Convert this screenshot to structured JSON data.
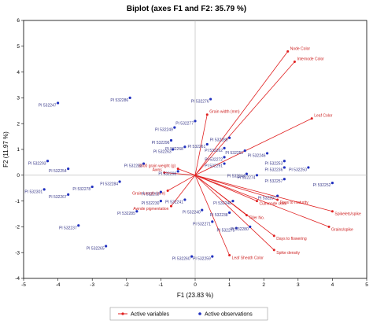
{
  "chart_data": {
    "type": "scatter",
    "title": "Biplot (axes F1 and F2: 35.79 %)",
    "xlabel": "F1 (23.83 %)",
    "ylabel": "F2 (11.97 %)",
    "xlim": [
      -5,
      5
    ],
    "ylim": [
      -4,
      6
    ],
    "xticks": [
      -5,
      -4,
      -3,
      -2,
      -1,
      0,
      1,
      2,
      3,
      4,
      5
    ],
    "yticks": [
      -4,
      -3,
      -2,
      -1,
      0,
      1,
      2,
      3,
      4,
      5,
      6
    ],
    "grid": false,
    "legend": "bottom",
    "colors": {
      "variables": "#e01f1f",
      "observations": "#1f2fbf",
      "zero_lines": "#b3b3b3"
    },
    "series": [
      {
        "name": "Active variables",
        "kind": "arrows",
        "points": [
          {
            "label": "Node Color",
            "x": 2.7,
            "y": 4.8
          },
          {
            "label": "Internode Color",
            "x": 2.9,
            "y": 4.4
          },
          {
            "label": "Leaf Color",
            "x": 3.4,
            "y": 2.2
          },
          {
            "label": "Grain width (mm)",
            "x": 0.35,
            "y": 2.35
          },
          {
            "label": "3000 grain weight (g)",
            "x": -0.5,
            "y": 0.25
          },
          {
            "label": "Awns",
            "x": -0.9,
            "y": 0.1
          },
          {
            "label": "Grain Length (mm)",
            "x": -0.8,
            "y": -0.6
          },
          {
            "label": "Awnde pigmentation",
            "x": -0.7,
            "y": -1.2
          },
          {
            "label": "Culmnode color",
            "x": 1.8,
            "y": -1.0
          },
          {
            "label": "Days to maturity",
            "x": 2.4,
            "y": -0.95
          },
          {
            "label": "Spikelets/spike",
            "x": 4.0,
            "y": -1.4
          },
          {
            "label": "Grains/spike",
            "x": 3.9,
            "y": -2.0
          },
          {
            "label": "Tiller No.",
            "x": 1.5,
            "y": -1.55
          },
          {
            "label": "Days to flowering",
            "x": 2.3,
            "y": -2.35
          },
          {
            "label": "Spike density",
            "x": 2.3,
            "y": -2.9
          },
          {
            "label": "Leaf Sheath Color",
            "x": 1.0,
            "y": -3.1
          }
        ]
      },
      {
        "name": "Active observations",
        "kind": "points",
        "points": [
          {
            "label": "PI 532286",
            "x": -1.9,
            "y": 3.0
          },
          {
            "label": "PI 532247",
            "x": -4.0,
            "y": 2.8
          },
          {
            "label": "PI 532276",
            "x": 0.45,
            "y": 2.95
          },
          {
            "label": "PI 532277",
            "x": 0.0,
            "y": 2.1
          },
          {
            "label": "PI 532249",
            "x": -0.6,
            "y": 1.85
          },
          {
            "label": "PI 532296",
            "x": -0.7,
            "y": 1.35
          },
          {
            "label": "PI 532263",
            "x": -0.65,
            "y": 1.0
          },
          {
            "label": "PI 532268",
            "x": -0.3,
            "y": 1.1
          },
          {
            "label": "PI 532261",
            "x": 0.35,
            "y": 1.2
          },
          {
            "label": "PI 532289",
            "x": 1.0,
            "y": 1.45
          },
          {
            "label": "PI 532262",
            "x": 0.85,
            "y": 1.05
          },
          {
            "label": "PI 532251",
            "x": 1.45,
            "y": 0.95
          },
          {
            "label": "PI 532246",
            "x": 2.1,
            "y": 0.85
          },
          {
            "label": "PI 532253",
            "x": 2.6,
            "y": 0.55
          },
          {
            "label": "PI 532272",
            "x": 0.85,
            "y": 0.7
          },
          {
            "label": "PI 532293",
            "x": -4.3,
            "y": 0.55
          },
          {
            "label": "PI 532254",
            "x": -3.7,
            "y": 0.25
          },
          {
            "label": "PI 532283",
            "x": -1.5,
            "y": 0.45
          },
          {
            "label": "PI 532298",
            "x": -0.5,
            "y": 0.15
          },
          {
            "label": "PI 532291",
            "x": 0.85,
            "y": 0.45
          },
          {
            "label": "PI 532236",
            "x": 2.6,
            "y": 0.3
          },
          {
            "label": "PI 532250",
            "x": 3.3,
            "y": 0.3
          },
          {
            "label": "PI 532244",
            "x": 1.5,
            "y": 0.05
          },
          {
            "label": "PI 532274",
            "x": 1.8,
            "y": 0.0
          },
          {
            "label": "PI 532257",
            "x": 2.6,
            "y": -0.15
          },
          {
            "label": "PI 532284",
            "x": -2.2,
            "y": -0.25
          },
          {
            "label": "PI 532278",
            "x": -3.0,
            "y": -0.45
          },
          {
            "label": "PI 532267",
            "x": -3.7,
            "y": -0.75
          },
          {
            "label": "PI 532301",
            "x": -4.4,
            "y": -0.55
          },
          {
            "label": "PI 532293",
            "x": -1.0,
            "y": -0.65
          },
          {
            "label": "PI 532252",
            "x": 4.0,
            "y": -0.3
          },
          {
            "label": "PI 532297",
            "x": 2.4,
            "y": -0.8
          },
          {
            "label": "PI 532230",
            "x": -1.0,
            "y": -1.0
          },
          {
            "label": "PI 532241",
            "x": -0.3,
            "y": -0.95
          },
          {
            "label": "PI 532248",
            "x": 1.1,
            "y": -1.0
          },
          {
            "label": "PI 532285",
            "x": -1.7,
            "y": -1.4
          },
          {
            "label": "PI 532240",
            "x": 0.2,
            "y": -1.35
          },
          {
            "label": "PI 532238",
            "x": 1.0,
            "y": -1.45
          },
          {
            "label": "PI 532271",
            "x": 0.5,
            "y": -1.8
          },
          {
            "label": "PI 532275",
            "x": 1.2,
            "y": -2.05
          },
          {
            "label": "PI 532280",
            "x": 1.6,
            "y": -2.0
          },
          {
            "label": "PI 532237",
            "x": -3.4,
            "y": -1.95
          },
          {
            "label": "PI 532265",
            "x": -2.6,
            "y": -2.75
          },
          {
            "label": "PI 532260",
            "x": -0.1,
            "y": -3.15
          },
          {
            "label": "PI 532259",
            "x": 0.5,
            "y": -3.15
          }
        ]
      }
    ]
  }
}
